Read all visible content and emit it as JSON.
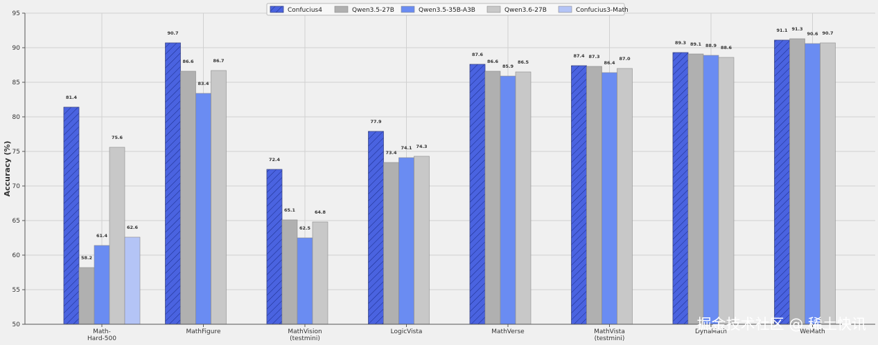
{
  "chart_data": {
    "type": "bar",
    "title": "",
    "xlabel": "",
    "ylabel": "Accuracy (%)",
    "ylim": [
      50,
      95
    ],
    "yticks": [
      50,
      55,
      60,
      65,
      70,
      75,
      80,
      85,
      90,
      95
    ],
    "grid": true,
    "legend_position": "top-center",
    "categories": [
      [
        "Math-",
        "Hard-500"
      ],
      [
        "MathFigure"
      ],
      [
        "MathVision",
        "(testmini)"
      ],
      [
        "LogicVista"
      ],
      [
        "MathVerse"
      ],
      [
        "MathVista",
        "(testmini)"
      ],
      [
        "DynaMath"
      ],
      [
        "WeMath"
      ]
    ],
    "series": [
      {
        "name": "Confucius4",
        "color": "#4a63e0",
        "hatch": true,
        "values": [
          81.4,
          90.7,
          72.4,
          77.9,
          87.6,
          87.4,
          89.3,
          91.1
        ]
      },
      {
        "name": "Qwen3.5-27B",
        "color": "#b0b0b0",
        "hatch": false,
        "values": [
          58.2,
          86.6,
          65.1,
          73.4,
          86.6,
          87.3,
          89.1,
          91.3
        ]
      },
      {
        "name": "Qwen3.5-35B-A3B",
        "color": "#6a8cf2",
        "hatch": false,
        "values": [
          61.4,
          83.4,
          62.5,
          74.1,
          85.9,
          86.4,
          88.9,
          90.6
        ]
      },
      {
        "name": "Qwen3.6-27B",
        "color": "#c8c8c8",
        "hatch": false,
        "values": [
          75.6,
          86.7,
          64.8,
          74.3,
          86.5,
          87.0,
          88.6,
          90.7
        ]
      },
      {
        "name": "Confucius3-Math",
        "color": "#b4c4f6",
        "hatch": false,
        "values": [
          62.6,
          null,
          null,
          null,
          null,
          null,
          null,
          null
        ]
      }
    ]
  },
  "watermark": {
    "text": "掘金技术社区 @ 稀土快讯"
  }
}
